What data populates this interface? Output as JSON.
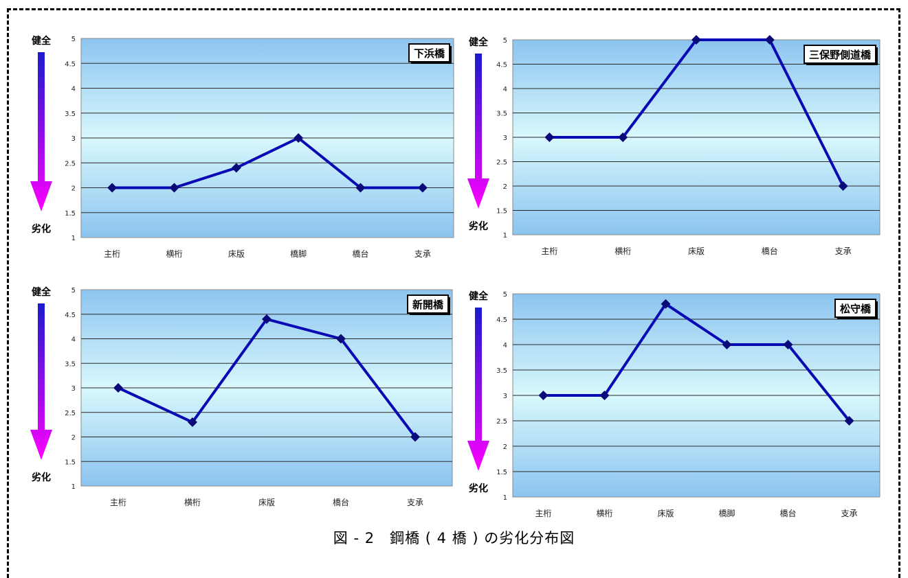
{
  "caption": "図 - 2　鋼橋 ( 4 橋 ) の劣化分布図",
  "indicator": {
    "top_label": "健全",
    "bottom_label": "劣化"
  },
  "colors": {
    "line": "#0a0ab4",
    "marker": "#0a0a78",
    "arrow_top": "#1a1ad0",
    "arrow_bottom": "#ff00ff",
    "plot_top": "#8cc4f0",
    "plot_mid": "#d8f8fc",
    "plot_bottom": "#8cc4f0",
    "grid": "#2a2a2a"
  },
  "chart_data": [
    {
      "type": "line",
      "title": "下浜橋",
      "categories": [
        "主桁",
        "横桁",
        "床版",
        "橋脚",
        "橋台",
        "支承"
      ],
      "values": [
        2,
        2,
        2.4,
        3,
        2,
        2
      ],
      "ylim": [
        1,
        5
      ],
      "yticks": [
        "1",
        "1.5",
        "2",
        "2.5",
        "3",
        "3.5",
        "4",
        "4.5",
        "5"
      ],
      "grid": true,
      "legend": "none"
    },
    {
      "type": "line",
      "title": "三保野側道橋",
      "categories": [
        "主桁",
        "横桁",
        "床版",
        "橋台",
        "支承"
      ],
      "values": [
        3,
        3,
        5,
        5,
        2
      ],
      "ylim": [
        1,
        5
      ],
      "yticks": [
        "1",
        "1.5",
        "2",
        "2.5",
        "3",
        "3.5",
        "4",
        "4.5",
        "5"
      ],
      "grid": true,
      "legend": "none"
    },
    {
      "type": "line",
      "title": "新開橋",
      "categories": [
        "主桁",
        "横桁",
        "床版",
        "橋台",
        "支承"
      ],
      "values": [
        3,
        2.3,
        4.4,
        4,
        2
      ],
      "ylim": [
        1,
        5
      ],
      "yticks": [
        "1",
        "1.5",
        "2",
        "2.5",
        "3",
        "3.5",
        "4",
        "4.5",
        "5"
      ],
      "grid": true,
      "legend": "none"
    },
    {
      "type": "line",
      "title": "松守橋",
      "categories": [
        "主桁",
        "横桁",
        "床版",
        "橋脚",
        "橋台",
        "支承"
      ],
      "values": [
        3,
        3,
        4.8,
        4,
        4,
        2.5
      ],
      "ylim": [
        1,
        5
      ],
      "yticks": [
        "1",
        "1.5",
        "2",
        "2.5",
        "3",
        "3.5",
        "4",
        "4.5",
        "5"
      ],
      "grid": true,
      "legend": "none"
    }
  ]
}
